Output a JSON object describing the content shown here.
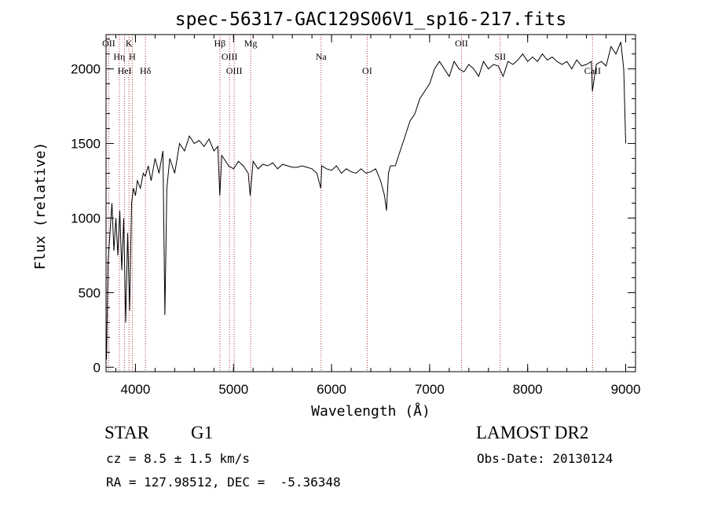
{
  "chart_data": {
    "type": "line",
    "title": "spec-56317-GAC129S06V1_sp16-217.fits",
    "xlabel": "Wavelength (Å)",
    "ylabel": "Flux (relative)",
    "xlim": [
      3700,
      9100
    ],
    "ylim": [
      -30,
      2230
    ],
    "xticks": [
      "4000",
      "5000",
      "6000",
      "7000",
      "8000",
      "9000"
    ],
    "yticks": [
      "0",
      "500",
      "1000",
      "1500",
      "2000"
    ],
    "series": [
      {
        "x": [
          3705,
          3720,
          3740,
          3760,
          3780,
          3800,
          3820,
          3840,
          3860,
          3880,
          3900,
          3920,
          3940,
          3960,
          3980,
          4000,
          4020,
          4050,
          4080,
          4100,
          4130,
          4160,
          4200,
          4240,
          4280,
          4300,
          4320,
          4350,
          4400,
          4450,
          4500,
          4550,
          4600,
          4650,
          4700,
          4750,
          4800,
          4840,
          4860,
          4880,
          4900,
          4950,
          5000,
          5050,
          5100,
          5150,
          5170,
          5200,
          5250,
          5300,
          5350,
          5400,
          5450,
          5500,
          5550,
          5600,
          5650,
          5700,
          5750,
          5800,
          5850,
          5890,
          5900,
          5950,
          6000,
          6050,
          6100,
          6150,
          6200,
          6250,
          6300,
          6350,
          6400,
          6450,
          6500,
          6540,
          6560,
          6580,
          6600,
          6650,
          6700,
          6750,
          6800,
          6850,
          6900,
          6950,
          7000,
          7050,
          7100,
          7150,
          7200,
          7250,
          7300,
          7350,
          7400,
          7450,
          7500,
          7550,
          7600,
          7650,
          7700,
          7750,
          7800,
          7850,
          7900,
          7950,
          8000,
          8050,
          8100,
          8150,
          8200,
          8250,
          8300,
          8350,
          8400,
          8450,
          8500,
          8550,
          8600,
          8650,
          8660,
          8700,
          8750,
          8800,
          8850,
          8900,
          8950,
          8980,
          9000
        ],
        "values": [
          50,
          700,
          900,
          1100,
          780,
          1000,
          750,
          1050,
          650,
          1000,
          300,
          900,
          380,
          1100,
          1200,
          1150,
          1250,
          1200,
          1300,
          1280,
          1350,
          1250,
          1400,
          1300,
          1450,
          350,
          1200,
          1400,
          1300,
          1500,
          1450,
          1550,
          1500,
          1520,
          1480,
          1530,
          1450,
          1480,
          1150,
          1420,
          1400,
          1350,
          1330,
          1380,
          1350,
          1300,
          1150,
          1380,
          1330,
          1360,
          1350,
          1370,
          1330,
          1360,
          1350,
          1340,
          1340,
          1350,
          1340,
          1330,
          1300,
          1200,
          1350,
          1330,
          1320,
          1350,
          1300,
          1330,
          1310,
          1300,
          1330,
          1300,
          1310,
          1330,
          1250,
          1150,
          1050,
          1300,
          1350,
          1350,
          1450,
          1550,
          1650,
          1700,
          1800,
          1850,
          1900,
          2000,
          2050,
          2000,
          1950,
          2050,
          2000,
          1980,
          2030,
          2000,
          1950,
          2050,
          2000,
          2030,
          2020,
          1950,
          2050,
          2030,
          2060,
          2100,
          2050,
          2080,
          2050,
          2100,
          2060,
          2080,
          2050,
          2030,
          2050,
          2000,
          2060,
          2020,
          2030,
          2050,
          1850,
          2030,
          2050,
          2020,
          2150,
          2100,
          2180,
          2000,
          1500
        ]
      }
    ],
    "lines": [
      {
        "label": "OII",
        "x": 3727
      },
      {
        "label": "Hη",
        "x": 3835
      },
      {
        "label": "HeI",
        "x": 3889
      },
      {
        "label": "K",
        "x": 3934
      },
      {
        "label": "H",
        "x": 3968
      },
      {
        "label": "Hδ",
        "x": 4102
      },
      {
        "label": "Hβ",
        "x": 4861
      },
      {
        "label": "OIII",
        "x": 4959
      },
      {
        "label": "OIII",
        "x": 5007
      },
      {
        "label": "Mg",
        "x": 5175
      },
      {
        "label": "Na",
        "x": 5893
      },
      {
        "label": "OI",
        "x": 6363
      },
      {
        "label": "OII",
        "x": 7325
      },
      {
        "label": "SII",
        "x": 7720
      },
      {
        "label": "CaII",
        "x": 8662
      }
    ]
  },
  "info": {
    "object_type": "STAR",
    "subclass": "G1",
    "survey": "LAMOST DR2",
    "cz": "cz = 8.5 ± 1.5 km/s",
    "obs_date": "Obs-Date: 20130124",
    "coords": "RA = 127.98512, DEC =  -5.36348"
  }
}
